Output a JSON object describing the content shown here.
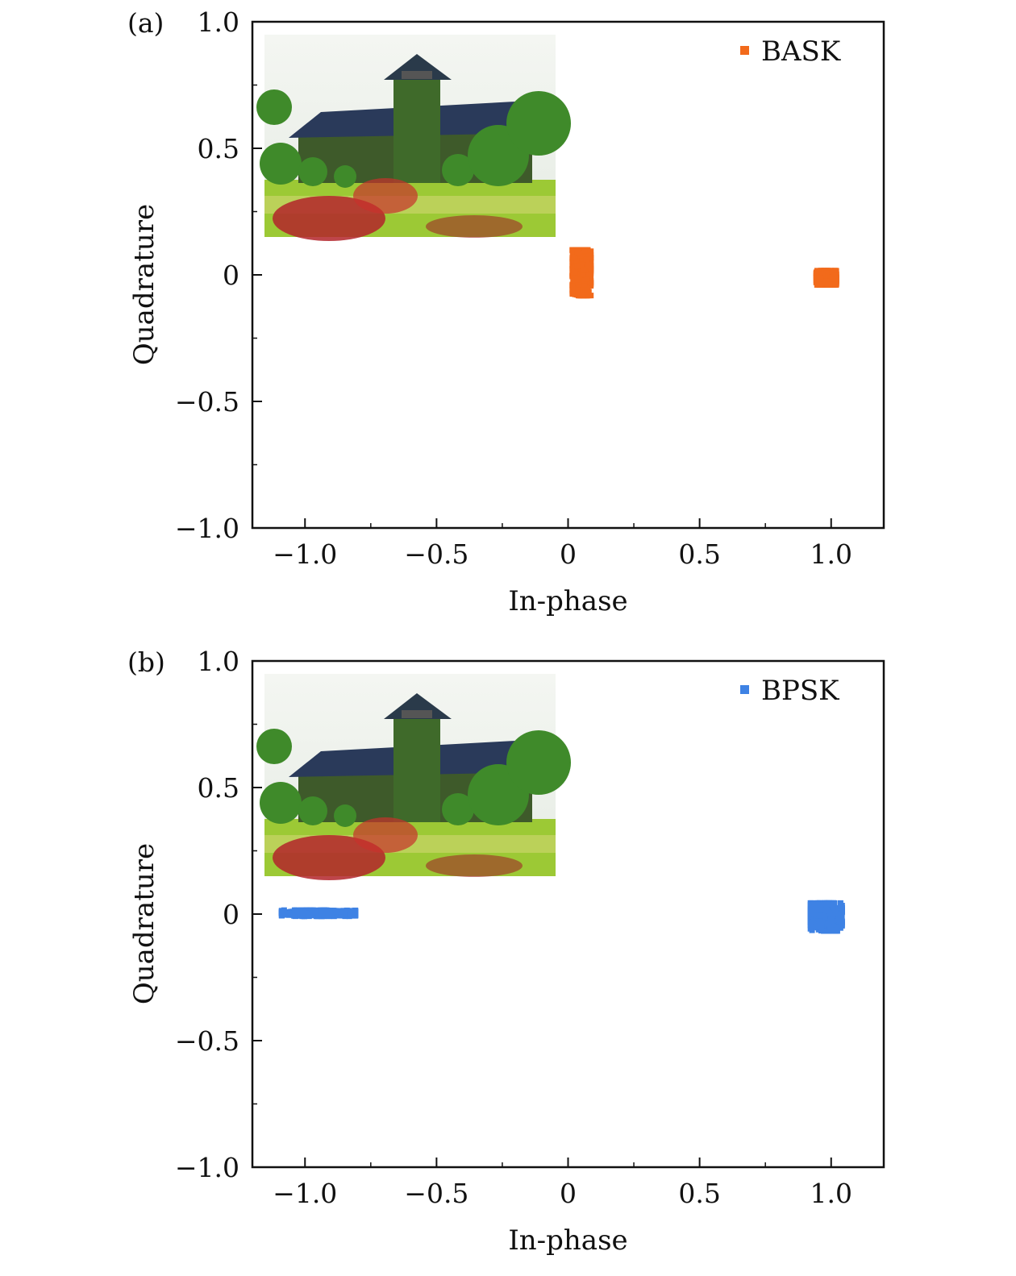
{
  "chart_data": [
    {
      "type": "scatter",
      "panel_label": "(a)",
      "xlabel": "In-phase",
      "ylabel": "Quadrature",
      "xlim": [
        -1.2,
        1.2
      ],
      "ylim": [
        -1.0,
        1.0
      ],
      "xticks": [
        -1.0,
        -0.5,
        0,
        0.5,
        1.0
      ],
      "xtick_labels": [
        "−1.0",
        "−0.5",
        "0",
        "0.5",
        "1.0"
      ],
      "yticks": [
        -1.0,
        -0.5,
        0,
        0.5,
        1.0
      ],
      "ytick_labels": [
        "−1.0",
        "−0.5",
        "0",
        "0.5",
        "1.0"
      ],
      "grid": false,
      "legend_position": "top-right",
      "inset": "photograph of a building (top-left)",
      "series": [
        {
          "name": "BASK",
          "color": "#f26a1b",
          "clusters": [
            {
              "center": [
                0.05,
                0.01
              ],
              "spread": [
                0.035,
                0.09
              ]
            },
            {
              "center": [
                0.98,
                -0.01
              ],
              "spread": [
                0.038,
                0.028
              ]
            }
          ]
        }
      ]
    },
    {
      "type": "scatter",
      "panel_label": "(b)",
      "xlabel": "In-phase",
      "ylabel": "Quadrature",
      "xlim": [
        -1.2,
        1.2
      ],
      "ylim": [
        -1.0,
        1.0
      ],
      "xticks": [
        -1.0,
        -0.5,
        0,
        0.5,
        1.0
      ],
      "xtick_labels": [
        "−1.0",
        "−0.5",
        "0",
        "0.5",
        "1.0"
      ],
      "yticks": [
        -1.0,
        -0.5,
        0,
        0.5,
        1.0
      ],
      "yticks_labels_note": "",
      "ytick_labels": [
        "−1.0",
        "−0.5",
        "0",
        "0.5",
        "1.0"
      ],
      "grid": false,
      "legend_position": "top-right",
      "inset": "photograph of a building (top-left)",
      "series": [
        {
          "name": "BPSK",
          "color": "#3e82e4",
          "clusters": [
            {
              "center": [
                -0.95,
                0.005
              ],
              "spread": [
                0.14,
                0.012
              ]
            },
            {
              "center": [
                0.98,
                -0.01
              ],
              "spread": [
                0.06,
                0.055
              ]
            }
          ]
        }
      ]
    }
  ]
}
